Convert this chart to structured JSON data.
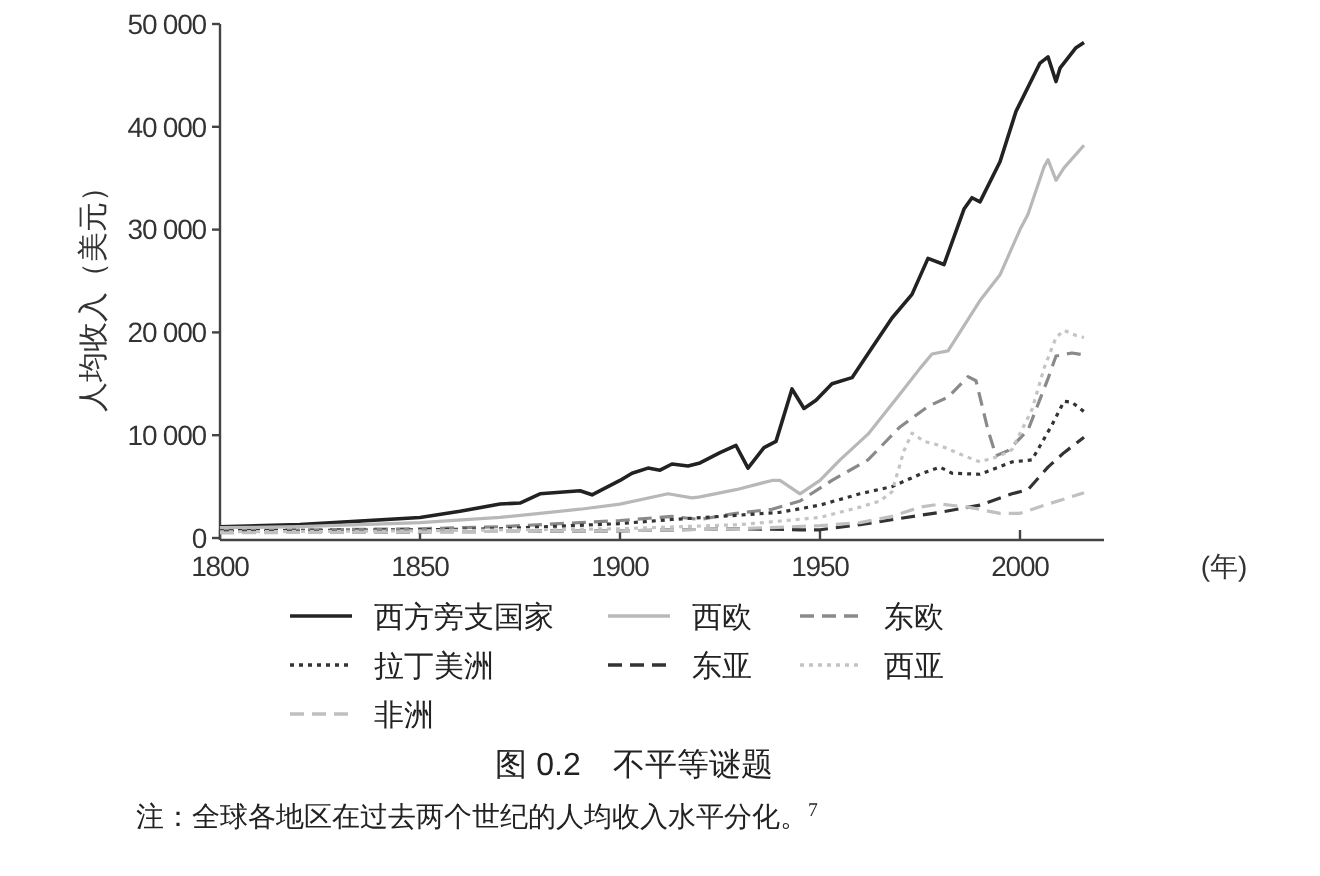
{
  "chart_data": {
    "type": "line",
    "title": "图 0.2　不平等谜题",
    "xlabel": "(年)",
    "ylabel": "人均收入（美元）",
    "annotations": [
      "注：全球各地区在过去两个世纪的人均收入水平分化。$^{7}$"
    ],
    "xlim": [
      1800,
      2021
    ],
    "xticks": [
      1800,
      1850,
      1900,
      1950,
      2000
    ],
    "ylim": [
      0,
      50000
    ],
    "yticks": [
      0,
      {
        "value": 10000,
        "label": "10 000"
      },
      {
        "value": 20000,
        "label": "20 000"
      },
      {
        "value": 30000,
        "label": "30 000"
      },
      {
        "value": 40000,
        "label": "40 000"
      },
      {
        "value": 50000,
        "label": "50 000"
      }
    ],
    "legend": "bottom",
    "series": [
      {
        "name": "西方旁支国家",
        "color": "#222222",
        "line_style": "solid",
        "x": [
          1800,
          1820,
          1850,
          1860,
          1870,
          1875,
          1880,
          1890,
          1893,
          1900,
          1903,
          1907,
          1910,
          1913,
          1917,
          1920,
          1925,
          1929,
          1932,
          1936,
          1939,
          1943,
          1946,
          1949,
          1953,
          1958,
          1963,
          1968,
          1973,
          1977,
          1981,
          1986,
          1988,
          1990,
          1995,
          1999,
          2005,
          2007,
          2009,
          2010,
          2014,
          2016
        ],
        "values": [
          1100,
          1300,
          2000,
          2600,
          3300,
          3400,
          4300,
          4600,
          4200,
          5600,
          6300,
          6800,
          6600,
          7200,
          7000,
          7300,
          8300,
          9000,
          6800,
          8800,
          9400,
          14500,
          12600,
          13400,
          15000,
          15600,
          18500,
          21400,
          23700,
          27200,
          26600,
          32000,
          33100,
          32700,
          36600,
          41500,
          46200,
          46800,
          44400,
          45700,
          47700,
          48200
        ]
      },
      {
        "name": "西欧",
        "color": "#b8b8b8",
        "line_style": "solid",
        "x": [
          1800,
          1820,
          1850,
          1870,
          1880,
          1890,
          1900,
          1912,
          1918,
          1920,
          1929,
          1938,
          1940,
          1945,
          1950,
          1955,
          1962,
          1970,
          1975,
          1978,
          1982,
          1990,
          1995,
          2000,
          2002,
          2006,
          2007,
          2009,
          2011,
          2016
        ],
        "values": [
          1000,
          1100,
          1500,
          2000,
          2400,
          2800,
          3300,
          4300,
          3900,
          4000,
          4700,
          5600,
          5600,
          4300,
          5600,
          7600,
          10100,
          14000,
          16500,
          17900,
          18200,
          23100,
          25600,
          30000,
          31500,
          36100,
          36800,
          34800,
          36000,
          38200
        ]
      },
      {
        "name": "东欧",
        "color": "#8a8a8a",
        "line_style": "dashed",
        "x": [
          1800,
          1850,
          1870,
          1900,
          1913,
          1920,
          1929,
          1938,
          1945,
          1953,
          1962,
          1970,
          1977,
          1982,
          1987,
          1989,
          1992,
          1994,
          1997,
          2002,
          2007,
          2009,
          2013,
          2016
        ],
        "values": [
          700,
          900,
          1100,
          1700,
          2100,
          1800,
          2400,
          2800,
          3600,
          5600,
          7600,
          10800,
          12800,
          13700,
          15700,
          15300,
          10500,
          8000,
          8500,
          10500,
          15500,
          17700,
          18000,
          17800
        ]
      },
      {
        "name": "拉丁美洲",
        "color": "#333333",
        "line_style": "dotted",
        "x": [
          1800,
          1850,
          1870,
          1900,
          1913,
          1929,
          1940,
          1950,
          1960,
          1968,
          1975,
          1980,
          1983,
          1990,
          1998,
          2003,
          2008,
          2011,
          2013,
          2016
        ],
        "values": [
          700,
          800,
          900,
          1400,
          1800,
          2200,
          2500,
          3200,
          4300,
          5000,
          6200,
          6900,
          6300,
          6200,
          7400,
          7600,
          11000,
          13300,
          13200,
          12300
        ]
      },
      {
        "name": "东亚",
        "color": "#333333",
        "line_style": "dashed",
        "x": [
          1800,
          1850,
          1900,
          1930,
          1945,
          1950,
          1960,
          1970,
          1980,
          1990,
          1998,
          2002,
          2007,
          2011,
          2016
        ],
        "values": [
          600,
          600,
          700,
          900,
          800,
          800,
          1300,
          1900,
          2500,
          3200,
          4300,
          4700,
          6900,
          8300,
          9800
        ]
      },
      {
        "name": "西亚",
        "color": "#c4c4c4",
        "line_style": "dotted",
        "x": [
          1800,
          1850,
          1900,
          1930,
          1950,
          1960,
          1965,
          1968,
          1971,
          1973,
          1976,
          1980,
          1986,
          1990,
          1995,
          1998,
          2003,
          2006,
          2009,
          2011,
          2014,
          2016
        ],
        "values": [
          600,
          700,
          900,
          1300,
          2000,
          3000,
          3600,
          4500,
          8500,
          10200,
          9400,
          9000,
          8000,
          7400,
          8000,
          8600,
          12500,
          16500,
          19500,
          20200,
          19700,
          19500
        ]
      },
      {
        "name": "非洲",
        "color": "#c0c0c0",
        "line_style": "dashed",
        "x": [
          1800,
          1850,
          1900,
          1930,
          1950,
          1960,
          1968,
          1975,
          1980,
          1987,
          1995,
          2000,
          2007,
          2016
        ],
        "values": [
          500,
          600,
          700,
          900,
          1200,
          1500,
          2100,
          3000,
          3300,
          3000,
          2400,
          2400,
          3300,
          4400
        ]
      }
    ]
  }
}
